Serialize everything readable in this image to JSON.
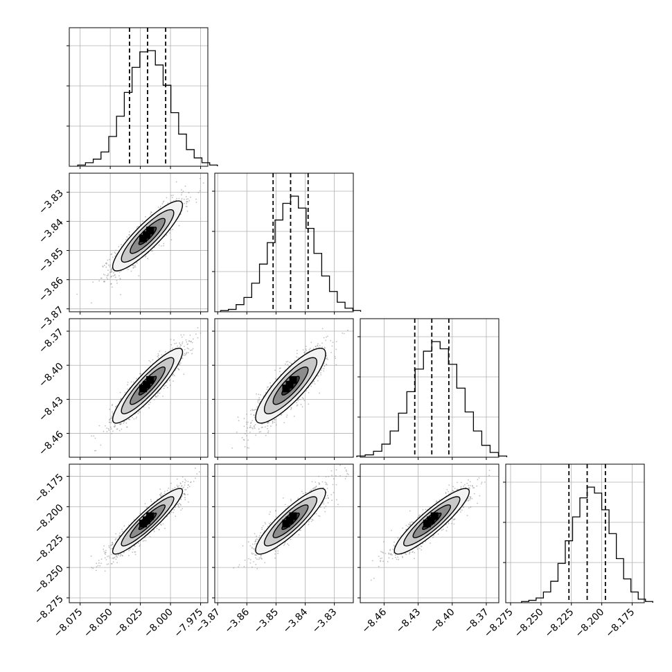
{
  "chart_data": {
    "type": "corner",
    "parameters": [
      {
        "ticks": [
          -8.075,
          -8.05,
          -8.025,
          -8.0,
          -7.975
        ],
        "tick_labels": [
          "−8.075",
          "−8.050",
          "−8.025",
          "−8.000",
          "−7.975"
        ],
        "range": [
          -8.084,
          -7.969
        ],
        "mean": -8.019,
        "sigma": 0.0145,
        "quantiles": [
          -8.034,
          -8.019,
          -8.004
        ],
        "hist_counts": [
          1,
          3,
          6,
          12,
          25,
          42,
          62,
          83,
          96,
          97,
          85,
          68,
          45,
          27,
          14,
          7,
          3,
          1
        ]
      },
      {
        "ticks": [
          -3.87,
          -3.86,
          -3.85,
          -3.84,
          -3.83
        ],
        "tick_labels": [
          "−3.87",
          "−3.86",
          "−3.85",
          "−3.84",
          "−3.83"
        ],
        "range": [
          -3.871,
          -3.8235
        ],
        "mean": -3.845,
        "sigma": 0.006,
        "quantiles": [
          -3.851,
          -3.845,
          -3.839
        ],
        "hist_counts": [
          1,
          2,
          6,
          12,
          24,
          40,
          58,
          77,
          91,
          97,
          87,
          70,
          49,
          30,
          17,
          8,
          3,
          1
        ]
      },
      {
        "ticks": [
          -8.46,
          -8.43,
          -8.4,
          -8.37
        ],
        "tick_labels": [
          "−8.46",
          "−8.43",
          "−8.40",
          "−8.37"
        ],
        "range": [
          -8.481,
          -8.359
        ],
        "mean": -8.418,
        "sigma": 0.0165,
        "quantiles": [
          -8.433,
          -8.418,
          -8.403
        ],
        "hist_counts": [
          1,
          2,
          5,
          11,
          22,
          37,
          55,
          74,
          89,
          97,
          91,
          78,
          58,
          38,
          22,
          10,
          4,
          1
        ]
      },
      {
        "ticks": [
          -8.275,
          -8.25,
          -8.225,
          -8.2,
          -8.175
        ],
        "tick_labels": [
          "−8.275",
          "−8.250",
          "−8.225",
          "−8.200",
          "−8.175"
        ],
        "range": [
          -8.279,
          -8.165
        ],
        "mean": -8.212,
        "sigma": 0.0135,
        "quantiles": [
          -8.227,
          -8.212,
          -8.197
        ],
        "hist_counts": [
          1,
          2,
          4,
          9,
          18,
          33,
          52,
          72,
          88,
          97,
          92,
          78,
          58,
          37,
          20,
          9,
          3,
          1
        ]
      }
    ],
    "pair_correlations": [
      {
        "row": 1,
        "col": 0,
        "rho": 0.88
      },
      {
        "row": 2,
        "col": 0,
        "rho": 0.9
      },
      {
        "row": 2,
        "col": 1,
        "rho": 0.85
      },
      {
        "row": 3,
        "col": 0,
        "rho": 0.92
      },
      {
        "row": 3,
        "col": 1,
        "rho": 0.88
      },
      {
        "row": 3,
        "col": 2,
        "rho": 0.9
      }
    ],
    "contour_sigma_levels": [
      0.5,
      1.0,
      1.5,
      2.0
    ],
    "quantile_levels": [
      0.16,
      0.5,
      0.84
    ],
    "grid": true,
    "colors": {
      "line": "#000000",
      "points": "#888888",
      "grid": "#b0b0b0"
    }
  }
}
